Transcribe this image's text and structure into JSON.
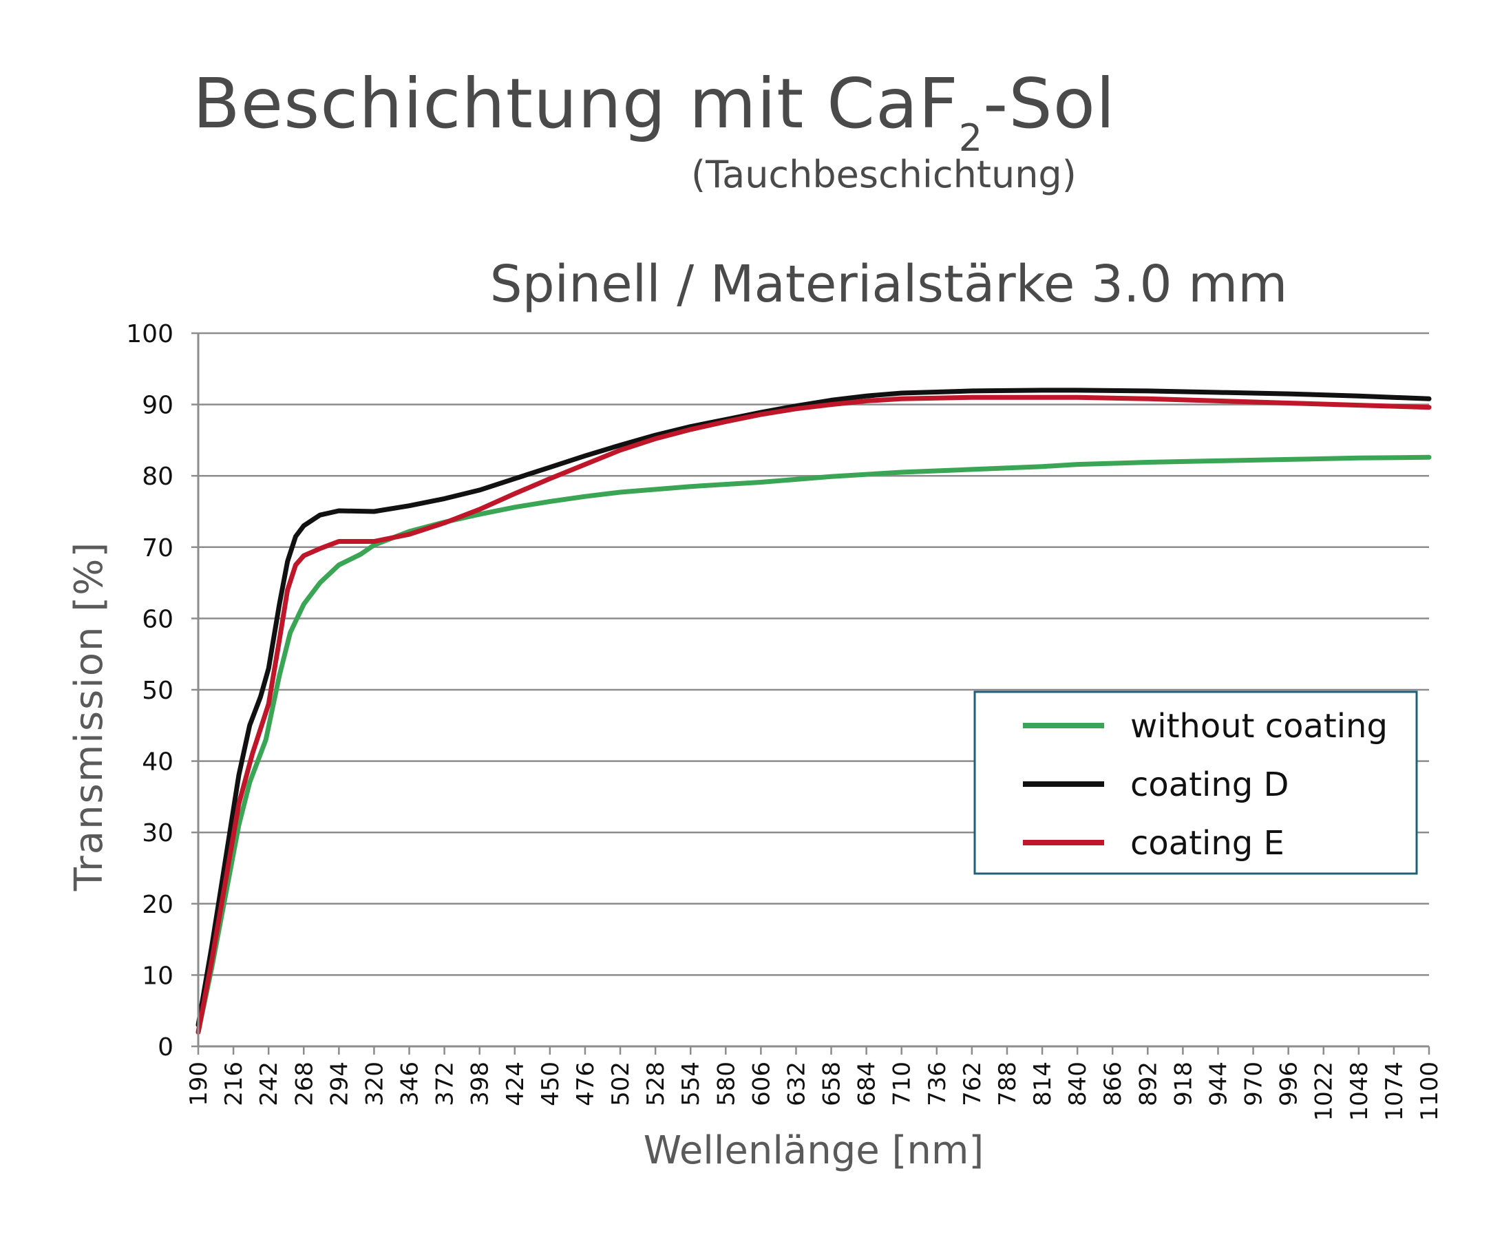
{
  "header": {
    "title_main": "Beschichtung mit CaF",
    "title_sub": "2",
    "title_tail": "-Sol",
    "subtitle": "(Tauchbeschichtung)"
  },
  "chart_data": {
    "type": "line",
    "title": "Spinell / Materialstärke 3.0 mm",
    "xlabel": "Wellenlänge [nm]",
    "ylabel": "Transmission [%]",
    "xlim": [
      190,
      1100
    ],
    "ylim": [
      0,
      100
    ],
    "x_ticks": [
      "190",
      "216",
      "242",
      "268",
      "294",
      "320",
      "346",
      "372",
      "398",
      "424",
      "450",
      "476",
      "502",
      "528",
      "554",
      "580",
      "606",
      "632",
      "658",
      "684",
      "710",
      "736",
      "762",
      "788",
      "814",
      "840",
      "866",
      "892",
      "918",
      "944",
      "970",
      "996",
      "1022",
      "1048",
      "1074",
      "1100"
    ],
    "y_ticks": [
      "0",
      "10",
      "20",
      "30",
      "40",
      "50",
      "60",
      "70",
      "80",
      "90",
      "100"
    ],
    "grid": "horizontal",
    "legend_position": "lower-right",
    "series": [
      {
        "name": "without coating",
        "color": "#3aa655",
        "points": [
          [
            190,
            2
          ],
          [
            200,
            11
          ],
          [
            210,
            21
          ],
          [
            220,
            31
          ],
          [
            228,
            37
          ],
          [
            240,
            43
          ],
          [
            250,
            52
          ],
          [
            258,
            58
          ],
          [
            268,
            62
          ],
          [
            280,
            65
          ],
          [
            294,
            67.5
          ],
          [
            310,
            69
          ],
          [
            320,
            70.3
          ],
          [
            346,
            72.2
          ],
          [
            372,
            73.5
          ],
          [
            398,
            74.6
          ],
          [
            424,
            75.6
          ],
          [
            450,
            76.4
          ],
          [
            476,
            77.1
          ],
          [
            502,
            77.7
          ],
          [
            554,
            78.5
          ],
          [
            606,
            79.1
          ],
          [
            658,
            79.9
          ],
          [
            710,
            80.5
          ],
          [
            762,
            80.9
          ],
          [
            814,
            81.3
          ],
          [
            840,
            81.6
          ],
          [
            892,
            81.9
          ],
          [
            944,
            82.1
          ],
          [
            996,
            82.3
          ],
          [
            1048,
            82.5
          ],
          [
            1100,
            82.6
          ]
        ]
      },
      {
        "name": "coating D",
        "color": "#111111",
        "points": [
          [
            190,
            3
          ],
          [
            200,
            14
          ],
          [
            210,
            26
          ],
          [
            220,
            38
          ],
          [
            228,
            45
          ],
          [
            236,
            49
          ],
          [
            242,
            53
          ],
          [
            250,
            62
          ],
          [
            256,
            68
          ],
          [
            262,
            71.5
          ],
          [
            268,
            73
          ],
          [
            280,
            74.5
          ],
          [
            294,
            75.1
          ],
          [
            320,
            75
          ],
          [
            346,
            75.8
          ],
          [
            372,
            76.8
          ],
          [
            398,
            78
          ],
          [
            424,
            79.6
          ],
          [
            450,
            81.2
          ],
          [
            476,
            82.8
          ],
          [
            502,
            84.3
          ],
          [
            528,
            85.7
          ],
          [
            554,
            86.9
          ],
          [
            580,
            87.9
          ],
          [
            606,
            88.9
          ],
          [
            632,
            89.8
          ],
          [
            658,
            90.6
          ],
          [
            684,
            91.2
          ],
          [
            710,
            91.6
          ],
          [
            762,
            91.9
          ],
          [
            814,
            92
          ],
          [
            840,
            92
          ],
          [
            892,
            91.9
          ],
          [
            944,
            91.7
          ],
          [
            996,
            91.5
          ],
          [
            1048,
            91.2
          ],
          [
            1100,
            90.8
          ]
        ]
      },
      {
        "name": "coating E",
        "color": "#c0162a",
        "points": [
          [
            190,
            2
          ],
          [
            200,
            12
          ],
          [
            210,
            23
          ],
          [
            220,
            34
          ],
          [
            230,
            41
          ],
          [
            242,
            48
          ],
          [
            250,
            57
          ],
          [
            256,
            64
          ],
          [
            262,
            67.5
          ],
          [
            268,
            68.8
          ],
          [
            280,
            69.8
          ],
          [
            294,
            70.8
          ],
          [
            320,
            70.8
          ],
          [
            346,
            71.8
          ],
          [
            372,
            73.4
          ],
          [
            398,
            75.3
          ],
          [
            424,
            77.5
          ],
          [
            450,
            79.6
          ],
          [
            476,
            81.6
          ],
          [
            502,
            83.6
          ],
          [
            528,
            85.2
          ],
          [
            554,
            86.5
          ],
          [
            580,
            87.6
          ],
          [
            606,
            88.6
          ],
          [
            632,
            89.4
          ],
          [
            658,
            90
          ],
          [
            684,
            90.5
          ],
          [
            710,
            90.8
          ],
          [
            762,
            91
          ],
          [
            814,
            91
          ],
          [
            840,
            91
          ],
          [
            892,
            90.8
          ],
          [
            944,
            90.5
          ],
          [
            996,
            90.2
          ],
          [
            1048,
            89.9
          ],
          [
            1100,
            89.6
          ]
        ]
      }
    ]
  }
}
